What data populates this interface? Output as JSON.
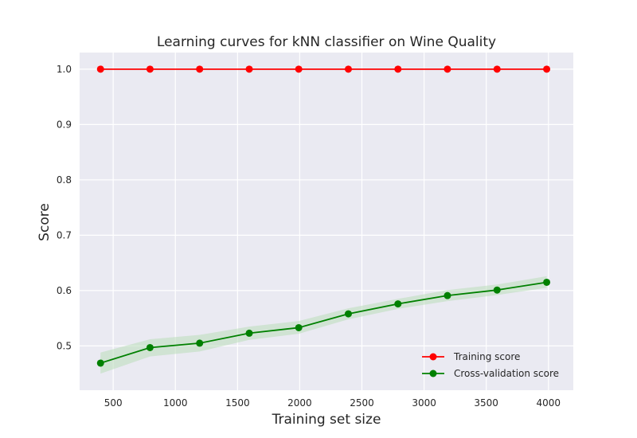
{
  "chart_data": {
    "type": "line",
    "title": "Learning curves for kNN classifier on Wine Quality",
    "xlabel": "Training set size",
    "ylabel": "Score",
    "xlim": [
      230,
      4200
    ],
    "ylim": [
      0.42,
      1.03
    ],
    "xticks": [
      500,
      1000,
      1500,
      2000,
      2500,
      3000,
      3500,
      4000
    ],
    "yticks": [
      0.5,
      0.6,
      0.7,
      0.8,
      0.9,
      1.0
    ],
    "grid": true,
    "legend_position": "lower-right",
    "background_color": "#eaeaf2",
    "series": [
      {
        "name": "Training score",
        "color": "#ff0000",
        "x": [
          398,
          796,
          1195,
          1594,
          1992,
          2391,
          2790,
          3188,
          3587,
          3986
        ],
        "y": [
          1.0,
          1.0,
          1.0,
          1.0,
          1.0,
          1.0,
          1.0,
          1.0,
          1.0,
          1.0
        ],
        "band_low": [
          1.0,
          1.0,
          1.0,
          1.0,
          1.0,
          1.0,
          1.0,
          1.0,
          1.0,
          1.0
        ],
        "band_high": [
          1.0,
          1.0,
          1.0,
          1.0,
          1.0,
          1.0,
          1.0,
          1.0,
          1.0,
          1.0
        ]
      },
      {
        "name": "Cross-validation score",
        "color": "#008000",
        "band_color": "#b9dcb9",
        "x": [
          398,
          796,
          1195,
          1594,
          1992,
          2391,
          2790,
          3188,
          3587,
          3986
        ],
        "y": [
          0.469,
          0.497,
          0.505,
          0.523,
          0.533,
          0.558,
          0.576,
          0.591,
          0.601,
          0.615
        ],
        "band_low": [
          0.45,
          0.481,
          0.49,
          0.511,
          0.522,
          0.548,
          0.567,
          0.581,
          0.592,
          0.605
        ],
        "band_high": [
          0.488,
          0.512,
          0.52,
          0.535,
          0.545,
          0.568,
          0.585,
          0.601,
          0.611,
          0.626
        ]
      }
    ]
  }
}
